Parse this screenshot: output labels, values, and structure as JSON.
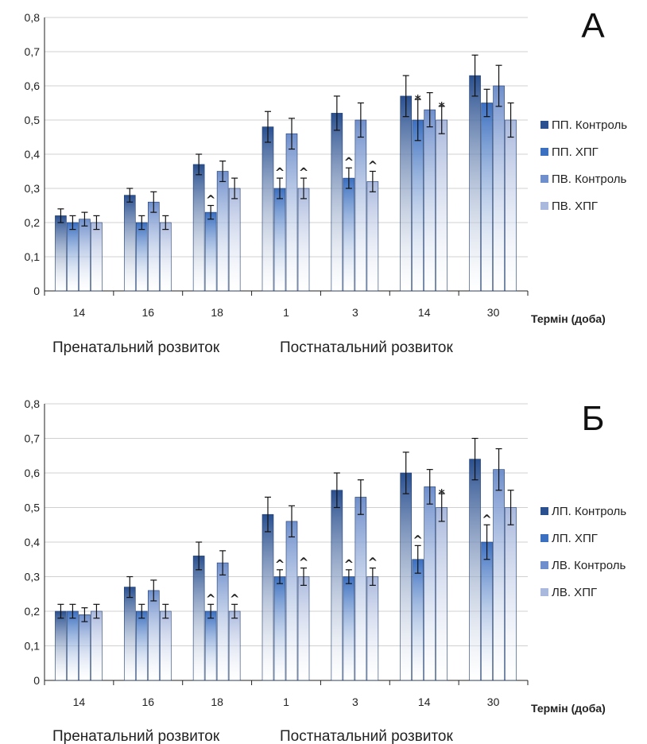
{
  "chart_data": [
    {
      "type": "bar",
      "panel_label": "А",
      "categories": [
        "14",
        "16",
        "18",
        "1",
        "3",
        "14",
        "30"
      ],
      "period_labels": [
        "Пренатальний розвиток",
        "Постнатальний розвиток"
      ],
      "xlabel": "Термін (доба)",
      "ylabel": "",
      "ylim": [
        0,
        0.8
      ],
      "yticks": [
        "0",
        "0,1",
        "0,2",
        "0,3",
        "0,4",
        "0,5",
        "0,6",
        "0,7",
        "0,8"
      ],
      "grid": true,
      "legend_position": "right",
      "series": [
        {
          "name": "ПП. Контроль",
          "values": [
            0.22,
            0.28,
            0.37,
            0.48,
            0.52,
            0.57,
            0.63
          ],
          "errors": [
            0.02,
            0.02,
            0.03,
            0.045,
            0.05,
            0.06,
            0.06
          ],
          "marks": [
            "",
            "",
            "",
            "",
            "",
            "",
            ""
          ]
        },
        {
          "name": "ПП. ХПГ",
          "values": [
            0.2,
            0.2,
            0.23,
            0.3,
            0.33,
            0.5,
            0.55
          ],
          "errors": [
            0.02,
            0.02,
            0.02,
            0.03,
            0.03,
            0.06,
            0.04
          ],
          "marks": [
            "",
            "",
            "^",
            "^",
            "^",
            "*",
            ""
          ]
        },
        {
          "name": "ПВ. Контроль",
          "values": [
            0.21,
            0.26,
            0.35,
            0.46,
            0.5,
            0.53,
            0.6
          ],
          "errors": [
            0.02,
            0.03,
            0.03,
            0.045,
            0.05,
            0.05,
            0.06
          ],
          "marks": [
            "",
            "",
            "",
            "",
            "",
            "",
            ""
          ]
        },
        {
          "name": "ПВ. ХПГ",
          "values": [
            0.2,
            0.2,
            0.3,
            0.3,
            0.32,
            0.5,
            0.5
          ],
          "errors": [
            0.02,
            0.02,
            0.03,
            0.03,
            0.03,
            0.04,
            0.05
          ],
          "marks": [
            "",
            "",
            "",
            "^",
            "^",
            "*",
            ""
          ]
        }
      ]
    },
    {
      "type": "bar",
      "panel_label": "Б",
      "categories": [
        "14",
        "16",
        "18",
        "1",
        "3",
        "14",
        "30"
      ],
      "period_labels": [
        "Пренатальний розвиток",
        "Постнатальний розвиток"
      ],
      "xlabel": "Термін (доба)",
      "ylabel": "",
      "ylim": [
        0,
        0.8
      ],
      "yticks": [
        "0",
        "0,1",
        "0,2",
        "0,3",
        "0,4",
        "0,5",
        "0,6",
        "0,7",
        "0,8"
      ],
      "grid": true,
      "legend_position": "right",
      "series": [
        {
          "name": "ЛП. Контроль",
          "values": [
            0.2,
            0.27,
            0.36,
            0.48,
            0.55,
            0.6,
            0.64
          ],
          "errors": [
            0.02,
            0.03,
            0.04,
            0.05,
            0.05,
            0.06,
            0.06
          ],
          "marks": [
            "",
            "",
            "",
            "",
            "",
            "",
            ""
          ]
        },
        {
          "name": "ЛП. ХПГ",
          "values": [
            0.2,
            0.2,
            0.2,
            0.3,
            0.3,
            0.35,
            0.4
          ],
          "errors": [
            0.02,
            0.02,
            0.02,
            0.02,
            0.02,
            0.04,
            0.05
          ],
          "marks": [
            "",
            "",
            "^",
            "^",
            "^",
            "^",
            "^"
          ]
        },
        {
          "name": "ЛВ. Контроль",
          "values": [
            0.19,
            0.26,
            0.34,
            0.46,
            0.53,
            0.56,
            0.61
          ],
          "errors": [
            0.02,
            0.03,
            0.035,
            0.045,
            0.05,
            0.05,
            0.06
          ],
          "marks": [
            "",
            "",
            "",
            "",
            "",
            "",
            ""
          ]
        },
        {
          "name": "ЛВ. ХПГ",
          "values": [
            0.2,
            0.2,
            0.2,
            0.3,
            0.3,
            0.5,
            0.5
          ],
          "errors": [
            0.02,
            0.02,
            0.02,
            0.025,
            0.025,
            0.04,
            0.05
          ],
          "marks": [
            "",
            "",
            "^",
            "^",
            "^",
            "*",
            ""
          ]
        }
      ]
    }
  ],
  "colors": {
    "series": [
      "#2a5090",
      "#3b6fc0",
      "#6f8fcc",
      "#a9b8dd"
    ],
    "grid": "#d0d0d0",
    "axis": "#222222"
  }
}
